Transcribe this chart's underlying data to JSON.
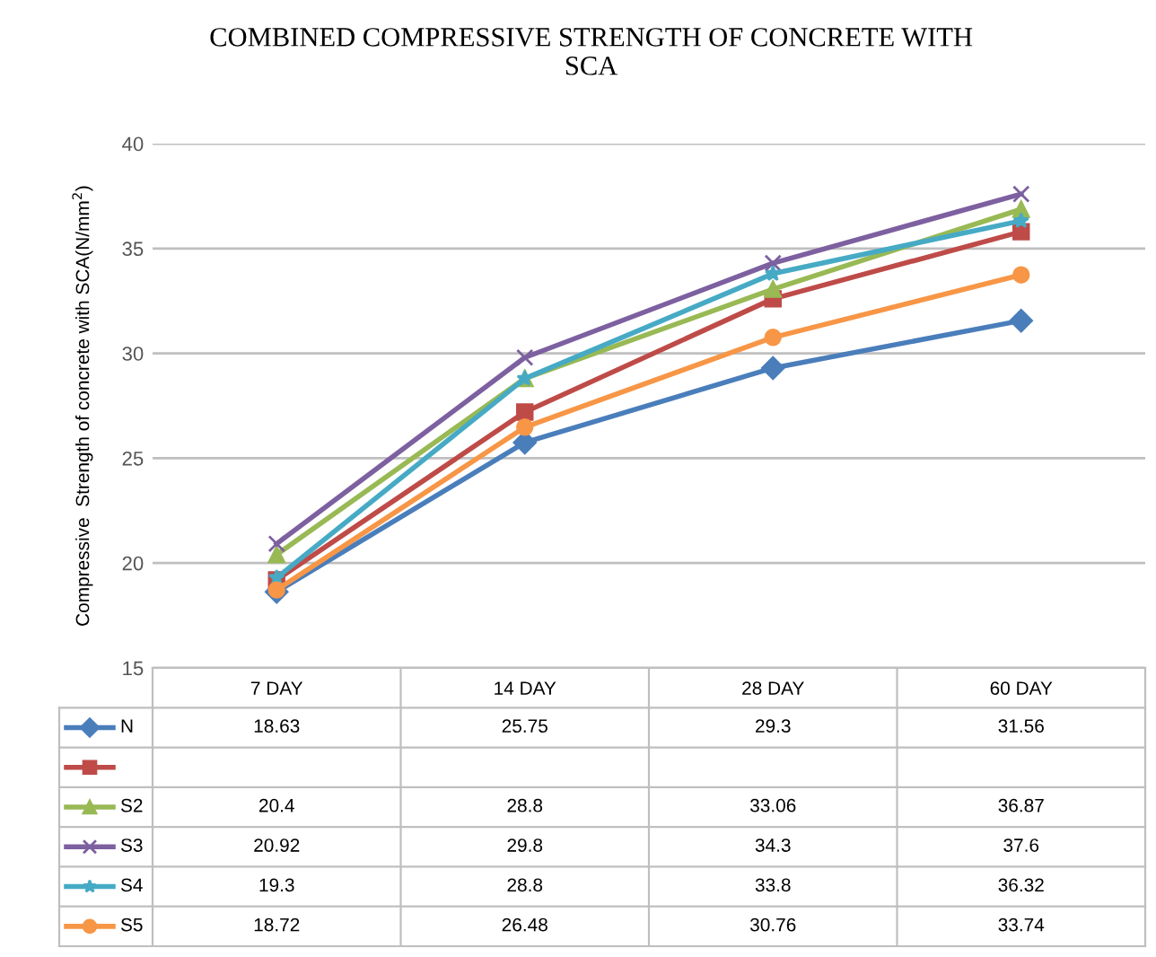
{
  "chart_data": {
    "type": "line",
    "title": "COMBINED COMPRESSIVE STRENGTH OF CONCRETE WITH\nSCA",
    "ylabel": "Compressive  Strength of concrete with SCA(N/mm$^{2}$)",
    "categories": [
      "7 DAY",
      "14 DAY",
      "28 DAY",
      "60 DAY"
    ],
    "ylim": [
      15,
      40
    ],
    "yticks": [
      15,
      20,
      25,
      30,
      35,
      40
    ],
    "grid": "y",
    "legend": "bottom",
    "series": [
      {
        "name": "N",
        "color": "#4a7ebb",
        "marker": "diamond",
        "values": [
          18.63,
          25.75,
          29.3,
          31.56
        ],
        "value_labels": [
          "18.63",
          "25.75",
          "29.3",
          "31.56"
        ]
      },
      {
        "color": "#be4b48",
        "marker": "square",
        "values": [
          19.2,
          27.2,
          32.6,
          35.8
        ],
        "value_labels": [
          null,
          null,
          null,
          null
        ]
      },
      {
        "name": "S2",
        "color": "#98b954",
        "marker": "triangle",
        "values": [
          20.4,
          28.8,
          33.06,
          36.87
        ],
        "value_labels": [
          "20.4",
          "28.8",
          "33.06",
          "36.87"
        ]
      },
      {
        "name": "S3",
        "color": "#7d60a0",
        "marker": "cross",
        "values": [
          20.92,
          29.8,
          34.3,
          37.6
        ],
        "value_labels": [
          "20.92",
          "29.8",
          "34.3",
          "37.6"
        ]
      },
      {
        "name": "S4",
        "color": "#46aac5",
        "marker": "star",
        "values": [
          19.3,
          28.8,
          33.8,
          36.32
        ],
        "value_labels": [
          "19.3",
          "28.8",
          "33.8",
          "36.32"
        ]
      },
      {
        "name": "S5",
        "color": "#f79646",
        "marker": "circle",
        "values": [
          18.72,
          26.48,
          30.76,
          33.74
        ],
        "value_labels": [
          "18.72",
          "26.48",
          "30.76",
          "33.74"
        ]
      }
    ]
  }
}
